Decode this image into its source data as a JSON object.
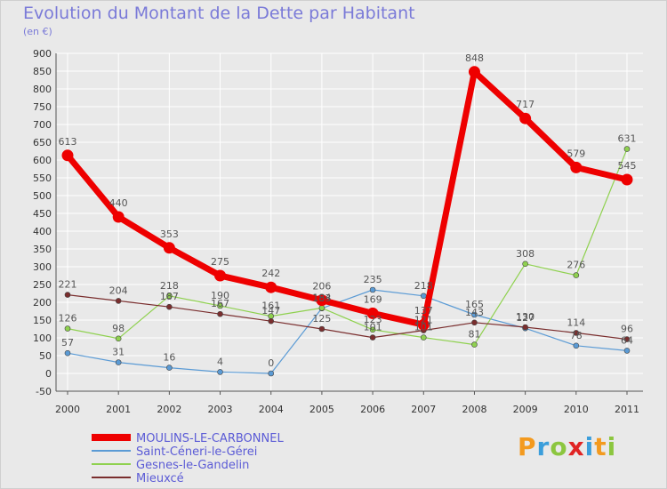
{
  "title": "Evolution du Montant de la Dette par Habitant",
  "subtitle": "(en €)",
  "logo": {
    "text": "Proxiti",
    "colors": [
      "#f39a1f",
      "#3b9edb",
      "#8cc63f",
      "#e02424",
      "#3b9edb",
      "#f39a1f",
      "#8cc63f"
    ]
  },
  "chart_data": {
    "type": "line",
    "title": "Evolution du Montant de la Dette par Habitant",
    "subtitle": "(en €)",
    "x": [
      "2000",
      "2001",
      "2002",
      "2003",
      "2004",
      "2005",
      "2006",
      "2007",
      "2008",
      "2009",
      "2010",
      "2011"
    ],
    "ylim": [
      -50,
      900
    ],
    "yticks": [
      -50,
      0,
      50,
      100,
      150,
      200,
      250,
      300,
      350,
      400,
      450,
      500,
      550,
      600,
      650,
      700,
      750,
      800,
      850,
      900
    ],
    "grid": true,
    "legend_position": "bottom-left",
    "series": [
      {
        "name": "MOULINS-LE-CARBONNEL",
        "color": "#ee0000",
        "width": 7,
        "marker": 6.5,
        "values": [
          613,
          440,
          353,
          275,
          242,
          206,
          169,
          137,
          848,
          717,
          579,
          545
        ]
      },
      {
        "name": "Saint-Céneri-le-Gérei",
        "color": "#5b9bd5",
        "width": 1.2,
        "marker": 3,
        "values": [
          57,
          31,
          16,
          4,
          0,
          183,
          235,
          218,
          165,
          127,
          78,
          64
        ]
      },
      {
        "name": "Gesnes-le-Gandelin",
        "color": "#8fd14f",
        "width": 1.2,
        "marker": 3,
        "values": [
          126,
          98,
          218,
          190,
          161,
          184,
          123,
          101,
          81,
          308,
          276,
          631
        ]
      },
      {
        "name": "Mieuxcé",
        "color": "#7a2e2e",
        "width": 1.2,
        "marker": 3,
        "values": [
          221,
          204,
          187,
          167,
          147,
          125,
          101,
          121,
          143,
          130,
          114,
          96
        ]
      }
    ]
  }
}
